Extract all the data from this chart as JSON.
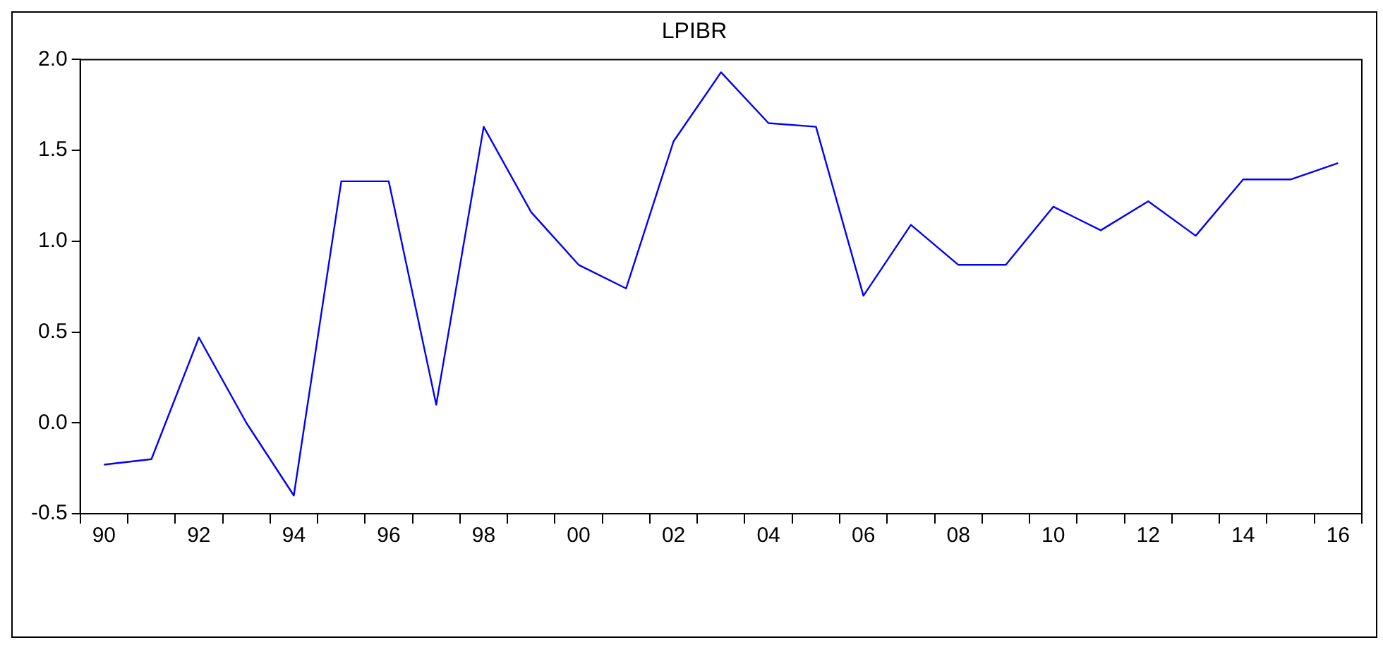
{
  "chart_data": {
    "type": "line",
    "title": "LPIBR",
    "categories": [
      "90",
      null,
      "92",
      null,
      "94",
      null,
      "96",
      null,
      "98",
      null,
      "00",
      null,
      "02",
      null,
      "04",
      null,
      "06",
      null,
      "08",
      null,
      "10",
      null,
      "12",
      null,
      "14",
      null,
      "16"
    ],
    "series": [
      {
        "color": "#0000ff",
        "values": [
          -0.23,
          -0.2,
          0.47,
          0.0,
          -0.4,
          1.33,
          1.33,
          0.1,
          1.63,
          1.16,
          0.87,
          0.74,
          1.55,
          1.93,
          1.65,
          1.63,
          0.7,
          1.09,
          0.87,
          0.87,
          1.19,
          1.06,
          1.22,
          1.03,
          1.34,
          1.34,
          1.43
        ]
      }
    ],
    "ylim": [
      -0.5,
      2.0
    ],
    "yticks": [
      {
        "value": -0.5,
        "label": "-0.5"
      },
      {
        "value": 0,
        "label": "0.0"
      },
      {
        "value": 0.5,
        "label": "0.5"
      },
      {
        "value": 1,
        "label": "1.0"
      },
      {
        "value": 1.5,
        "label": "1.5"
      },
      {
        "value": 2,
        "label": "2.0"
      }
    ],
    "grid": false,
    "legend": false,
    "marker": "none",
    "line_style": "solid"
  }
}
